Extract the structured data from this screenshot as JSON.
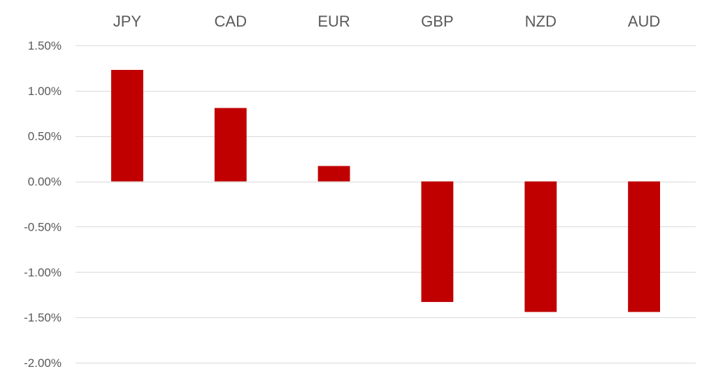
{
  "chart_data": {
    "type": "bar",
    "categories": [
      "JPY",
      "CAD",
      "EUR",
      "GBP",
      "NZD",
      "AUD"
    ],
    "values": [
      1.23,
      0.81,
      0.17,
      -1.33,
      -1.44,
      -1.44
    ],
    "title": "",
    "xlabel": "",
    "ylabel": "",
    "ylim": [
      -2.0,
      1.5
    ],
    "yticks": [
      1.5,
      1.0,
      0.5,
      0.0,
      -0.5,
      -1.0,
      -1.5,
      -2.0
    ],
    "ytick_labels": [
      "1.50%",
      "1.00%",
      "0.50%",
      "0.00%",
      "-0.50%",
      "-1.00%",
      "-1.50%",
      "-2.00%"
    ],
    "category_labels_position": "top",
    "grid": true,
    "legend": "none",
    "bar_color": "#c00000",
    "grid_color": "#d9d9d9",
    "text_color": "#595959"
  }
}
